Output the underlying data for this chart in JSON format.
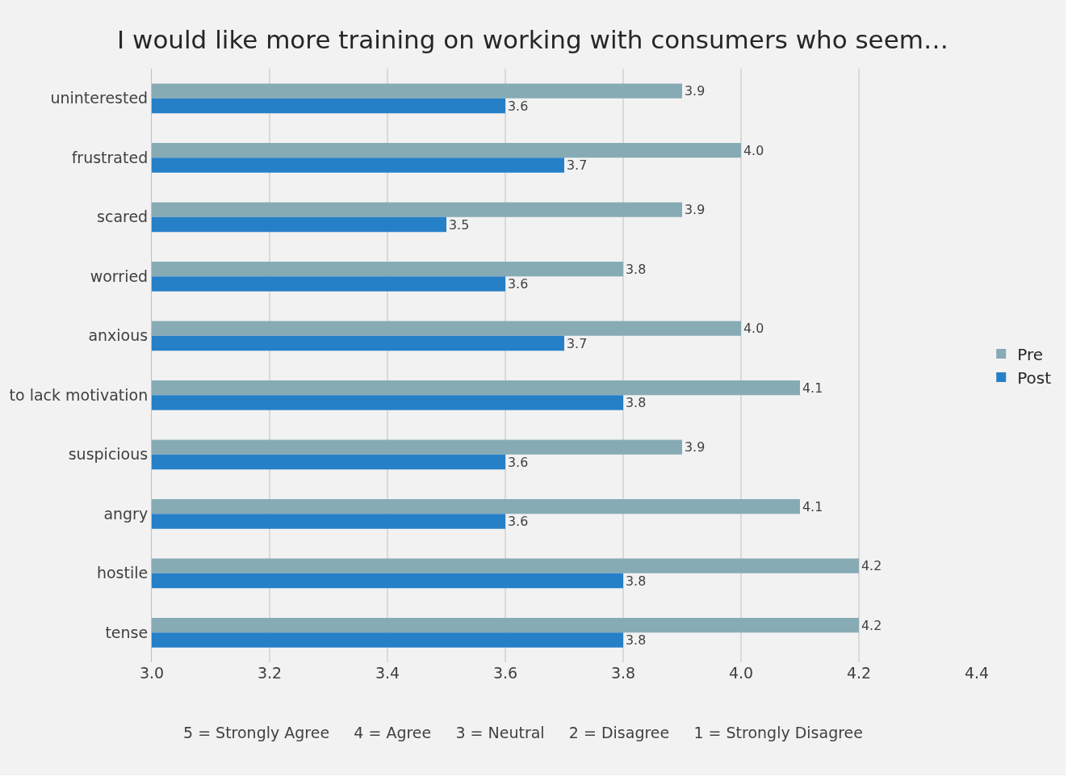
{
  "chart_data": {
    "type": "bar",
    "orientation": "horizontal",
    "title": "I would like more training on working with consumers who seem…",
    "categories": [
      "uninterested",
      "frustrated",
      "scared",
      "worried",
      "anxious",
      "to lack motivation",
      "suspicious",
      "angry",
      "hostile",
      "tense"
    ],
    "series": [
      {
        "name": "Pre",
        "color": "#87abb5",
        "values": [
          3.9,
          4.0,
          3.9,
          3.8,
          4.0,
          4.1,
          3.9,
          4.1,
          4.2,
          4.2
        ],
        "value_labels": [
          "3.9",
          "4.0",
          "3.9",
          "3.8",
          "4.0",
          "4.1",
          "3.9",
          "4.1",
          "4.2",
          "4.2"
        ]
      },
      {
        "name": "Post",
        "color": "#2680c8",
        "values": [
          3.6,
          3.7,
          3.5,
          3.6,
          3.7,
          3.8,
          3.6,
          3.6,
          3.8,
          3.8
        ],
        "value_labels": [
          "3.6",
          "3.7",
          "3.5",
          "3.6",
          "3.7",
          "3.8",
          "3.6",
          "3.6",
          "3.8",
          "3.8"
        ]
      }
    ],
    "xlim": [
      3.0,
      4.4
    ],
    "xticks": [
      {
        "value": 3.0,
        "label": "3.0"
      },
      {
        "value": 3.2,
        "label": "3.2"
      },
      {
        "value": 3.4,
        "label": "3.4"
      },
      {
        "value": 3.6,
        "label": "3.6"
      },
      {
        "value": 3.8,
        "label": "3.8"
      },
      {
        "value": 4.0,
        "label": "4.0"
      },
      {
        "value": 4.2,
        "label": "4.2"
      },
      {
        "value": 4.4,
        "label": "4.4"
      }
    ],
    "grid": "x",
    "legend": "right",
    "annotations": [
      "5 = Strongly Agree     4 = Agree     3 = Neutral     2 = Disagree     1 = Strongly Disagree"
    ]
  }
}
